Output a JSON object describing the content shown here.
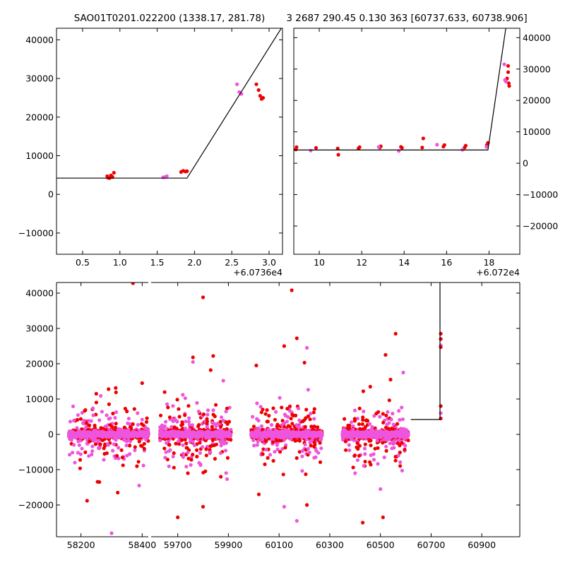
{
  "chart_data": [
    {
      "type": "scatter",
      "id": "top-left",
      "title": "SAO01T0201.022200 (1338.17, 281.78)",
      "x_offset_label": "+6.0736e4",
      "xlim": [
        0.15,
        3.18
      ],
      "ylim": [
        -15500,
        43000
      ],
      "x_ticks": [
        0.5,
        1.0,
        1.5,
        2.0,
        2.5,
        3.0
      ],
      "x_tick_labels": [
        "0.5",
        "1.0",
        "1.5",
        "2.0",
        "2.5",
        "3.0"
      ],
      "y_ticks": [
        -10000,
        0,
        10000,
        20000,
        30000,
        40000
      ],
      "y_tick_labels": [
        "−10000",
        "0",
        "10000",
        "20000",
        "30000",
        "40000"
      ],
      "y_axis_side": "left",
      "model_line": [
        [
          0.15,
          4200
        ],
        [
          1.9,
          4200
        ],
        [
          3.18,
          43500
        ]
      ],
      "series": [
        {
          "color": "#ee0000",
          "points": [
            [
              0.83,
              4700
            ],
            [
              0.86,
              4200
            ],
            [
              0.88,
              4900
            ],
            [
              0.9,
              4500
            ],
            [
              0.92,
              5600
            ],
            [
              0.84,
              4300
            ],
            [
              1.82,
              5800
            ],
            [
              1.85,
              6100
            ],
            [
              1.88,
              5900
            ],
            [
              1.9,
              6000
            ],
            [
              2.83,
              28500
            ],
            [
              2.86,
              27000
            ],
            [
              2.88,
              25500
            ],
            [
              2.9,
              24700
            ],
            [
              2.92,
              25000
            ]
          ]
        },
        {
          "color": "#ee55dd",
          "points": [
            [
              1.58,
              4400
            ],
            [
              1.61,
              4500
            ],
            [
              1.63,
              4700
            ],
            [
              2.57,
              28500
            ],
            [
              2.6,
              26500
            ],
            [
              2.63,
              26000
            ]
          ]
        }
      ]
    },
    {
      "type": "scatter",
      "id": "top-right",
      "title": "3 2687 290.45 0.130 363 [60737.633, 60738.906]",
      "x_offset_label": "+6.072e4",
      "xlim": [
        8.8,
        19.45
      ],
      "ylim": [
        -29000,
        43000
      ],
      "x_ticks": [
        10,
        12,
        14,
        16,
        18
      ],
      "x_tick_labels": [
        "10",
        "12",
        "14",
        "16",
        "18"
      ],
      "y_ticks": [
        -20000,
        -10000,
        0,
        10000,
        20000,
        30000,
        40000
      ],
      "y_tick_labels": [
        "−20000",
        "−10000",
        "0",
        "10000",
        "20000",
        "30000",
        "40000"
      ],
      "y_axis_side": "right",
      "model_line": [
        [
          8.8,
          4200
        ],
        [
          17.95,
          4200
        ],
        [
          18.8,
          43500
        ]
      ],
      "series": [
        {
          "color": "#ee0000",
          "points": [
            [
              8.9,
              4400
            ],
            [
              8.93,
              5100
            ],
            [
              9.85,
              4900
            ],
            [
              10.87,
              4700
            ],
            [
              10.9,
              2700
            ],
            [
              11.85,
              4700
            ],
            [
              11.9,
              5100
            ],
            [
              12.85,
              5000
            ],
            [
              12.9,
              5400
            ],
            [
              13.85,
              5200
            ],
            [
              13.9,
              4900
            ],
            [
              14.85,
              5000
            ],
            [
              14.9,
              7900
            ],
            [
              15.85,
              5300
            ],
            [
              15.9,
              5800
            ],
            [
              16.85,
              5000
            ],
            [
              16.9,
              5600
            ],
            [
              17.9,
              5800
            ],
            [
              17.95,
              6500
            ],
            [
              18.85,
              27000
            ],
            [
              18.9,
              29000
            ],
            [
              18.93,
              25500
            ],
            [
              18.95,
              24600
            ],
            [
              18.9,
              31000
            ]
          ]
        },
        {
          "color": "#ee55dd",
          "points": [
            [
              9.6,
              4000
            ],
            [
              12.8,
              5200
            ],
            [
              13.75,
              3900
            ],
            [
              15.55,
              5900
            ],
            [
              16.75,
              4300
            ],
            [
              17.88,
              5200
            ],
            [
              18.72,
              31500
            ],
            [
              18.75,
              26500
            ],
            [
              18.8,
              26000
            ]
          ]
        }
      ]
    },
    {
      "type": "scatter",
      "id": "bottom",
      "xlim": [
        58120,
        61050
      ],
      "ylim": [
        -29000,
        43000
      ],
      "x_broken": true,
      "x_ticks": [
        58200,
        58400,
        59700,
        59900,
        60100,
        60300,
        60500,
        60700,
        60900
      ],
      "x_tick_labels": [
        "58200",
        "58400",
        "59700",
        "59900",
        "60100",
        "60300",
        "60500",
        "60700",
        "60900"
      ],
      "y_ticks": [
        -20000,
        -10000,
        0,
        10000,
        20000,
        30000,
        40000
      ],
      "y_tick_labels": [
        "−20000",
        "−10000",
        "0",
        "10000",
        "20000",
        "30000",
        "40000"
      ],
      "model_line": [
        [
          60620,
          4200
        ],
        [
          60735,
          4200
        ],
        [
          60735,
          43500
        ]
      ],
      "clusters": [
        {
          "center": 58290,
          "half_width": 130,
          "outliers": [
            [
              58220,
              -18800
            ],
            [
              58260,
              -13500
            ],
            [
              58300,
              -28000
            ],
            [
              58370,
              42800
            ],
            [
              58400,
              14500
            ],
            [
              58390,
              -14500
            ],
            [
              58250,
              11500
            ],
            [
              58290,
              12800
            ],
            [
              58180,
              -8000
            ],
            [
              58320,
              -16500
            ],
            [
              58350,
              6500
            ]
          ]
        },
        {
          "center": 59770,
          "half_width": 140,
          "outliers": [
            [
              59800,
              38800
            ],
            [
              59760,
              21800
            ],
            [
              59760,
              20500
            ],
            [
              59830,
              18200
            ],
            [
              59840,
              22200
            ],
            [
              59880,
              15200
            ],
            [
              59700,
              -23500
            ],
            [
              59800,
              -20500
            ],
            [
              59720,
              11200
            ],
            [
              59740,
              -11000
            ],
            [
              59870,
              -12000
            ]
          ]
        },
        {
          "center": 60130,
          "half_width": 140,
          "outliers": [
            [
              60150,
              40800
            ],
            [
              60170,
              27200
            ],
            [
              60210,
              24500
            ],
            [
              60120,
              25000
            ],
            [
              60010,
              19500
            ],
            [
              60170,
              -24500
            ],
            [
              60210,
              -20000
            ],
            [
              60020,
              -17000
            ],
            [
              60120,
              -20500
            ],
            [
              60200,
              20300
            ]
          ]
        },
        {
          "center": 60480,
          "half_width": 130,
          "outliers": [
            [
              60560,
              28500
            ],
            [
              60520,
              22500
            ],
            [
              60590,
              17500
            ],
            [
              60430,
              -25000
            ],
            [
              60510,
              -23500
            ],
            [
              60500,
              -15500
            ],
            [
              60460,
              13500
            ],
            [
              60540,
              15500
            ],
            [
              60400,
              -11000
            ]
          ]
        },
        {
          "center": 60738,
          "half_width": 5,
          "outliers": [
            [
              60738,
              28500
            ],
            [
              60738,
              27000
            ],
            [
              60738,
              25200
            ],
            [
              60738,
              24700
            ],
            [
              60738,
              8000
            ],
            [
              60738,
              6000
            ],
            [
              60738,
              4500
            ]
          ]
        }
      ],
      "colors": {
        "primary": "#ee0000",
        "secondary": "#ee55dd"
      }
    }
  ]
}
